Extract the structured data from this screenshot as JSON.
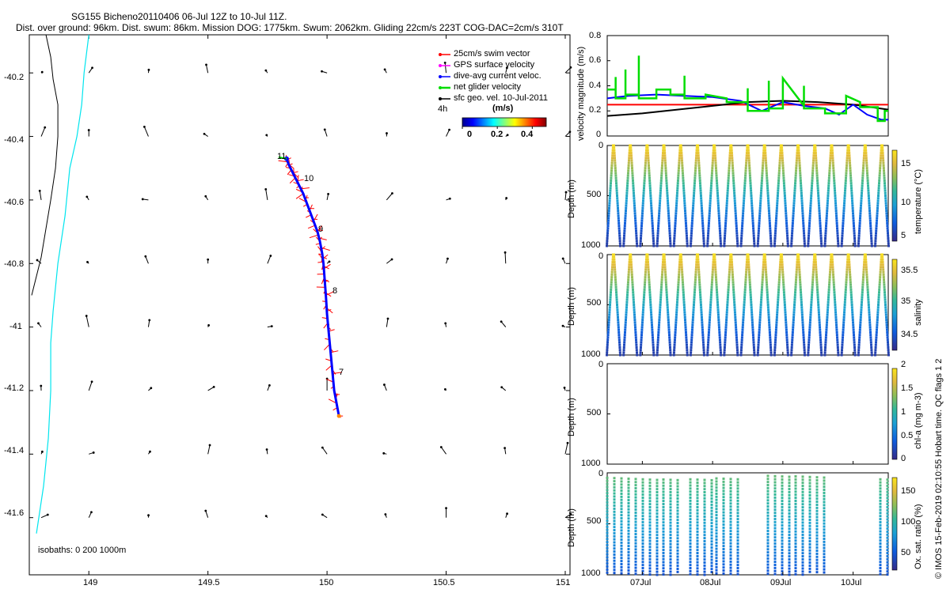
{
  "header": {
    "line1": "SG155 Bicheno20110406 06-Jul 12Z to 10-Jul 11Z.",
    "line2": "Dist. over ground: 96km. Dist. swum: 86km. Mission DOG: 1775km. Swum: 2062km. Gliding 22cm/s 223T COG-DAC=2cm/s 310T"
  },
  "footer_credit": "© IMOS 15-Feb-2019 02:10:55 Hobart time. QC flags 1  2",
  "colors": {
    "swim": "#ff0000",
    "gps": "#ff00ff",
    "dac": "#0000ff",
    "net": "#00dd00",
    "sfc": "#000000",
    "isobath_0": "#000000",
    "isobath_200": "#00e5ee"
  },
  "chart_data": [
    {
      "type": "scatter",
      "id": "track_map",
      "xlim": [
        148.75,
        151.02
      ],
      "ylim": [
        -41.78,
        -40.08
      ],
      "x_ticks": [
        "149",
        "149.5",
        "150",
        "150.5",
        "151"
      ],
      "x_tick_values": [
        149,
        149.5,
        150,
        150.5,
        151
      ],
      "y_ticks": [
        "-40.2",
        "-40.4",
        "-40.6",
        "-40.8",
        "-41",
        "-41.2",
        "-41.4",
        "-41.6"
      ],
      "y_tick_values": [
        -40.2,
        -40.4,
        -40.6,
        -40.8,
        -41.0,
        -41.2,
        -41.4,
        -41.6
      ],
      "legend": [
        "25cm/s swim vector",
        "GPS surface velocity",
        "dive-avg current veloc.",
        "net glider velocity",
        "sfc geo. vel. 10-Jul-2011"
      ],
      "legend_extra": "4h",
      "colorbar_title": "(m/s)",
      "colorbar_ticks": [
        "0",
        "0.2",
        "0.4"
      ],
      "colorbar_range": [
        0,
        0.48
      ],
      "isobath_note": "isobaths: 0   200   1000m",
      "day_labels": [
        {
          "label": "11",
          "lon": 149.82,
          "lat": -40.46
        },
        {
          "label": "10",
          "lon": 149.93,
          "lat": -40.54
        },
        {
          "label": "9",
          "lon": 149.97,
          "lat": -40.74
        },
        {
          "label": "8",
          "lon": 150.01,
          "lat": -40.94
        },
        {
          "label": "7",
          "lon": 150.04,
          "lat": -41.17
        }
      ],
      "track": {
        "lon": [
          150.05,
          150.03,
          150.02,
          150.01,
          150.0,
          149.995,
          149.99,
          149.985,
          149.98,
          149.97,
          149.96,
          149.94,
          149.92,
          149.9,
          149.88,
          149.86,
          149.84,
          149.83
        ],
        "lat": [
          -41.28,
          -41.2,
          -41.12,
          -41.04,
          -40.96,
          -40.9,
          -40.85,
          -40.8,
          -40.77,
          -40.73,
          -40.7,
          -40.66,
          -40.62,
          -40.58,
          -40.55,
          -40.52,
          -40.49,
          -40.47
        ]
      },
      "coastline_0m": {
        "lon": [
          148.82,
          148.84,
          148.85,
          148.87,
          148.87,
          148.86,
          148.84,
          148.8,
          148.76
        ],
        "lat": [
          -40.08,
          -40.15,
          -40.22,
          -40.3,
          -40.4,
          -40.5,
          -40.6,
          -40.78,
          -40.9
        ]
      },
      "isobath_200m": {
        "lon": [
          149.0,
          148.98,
          148.97,
          148.95,
          148.92,
          148.9,
          148.87,
          148.85,
          148.84,
          148.84,
          148.83,
          148.81,
          148.78
        ],
        "lat": [
          -40.08,
          -40.2,
          -40.3,
          -40.4,
          -40.5,
          -40.65,
          -40.8,
          -40.95,
          -41.05,
          -41.2,
          -41.35,
          -41.5,
          -41.65
        ]
      }
    },
    {
      "type": "line",
      "id": "velocity",
      "ylabel": "velocity magnitude (m/s)",
      "ylim": [
        0,
        0.8
      ],
      "y_ticks": [
        "0",
        "0.2",
        "0.4",
        "0.6",
        "0.8"
      ],
      "y_tick_values": [
        0,
        0.2,
        0.4,
        0.6,
        0.8
      ],
      "xlim": [
        6.5,
        10.5
      ],
      "series": [
        {
          "color": "#ff0000",
          "x": [
            6.5,
            10.5
          ],
          "y": [
            0.25,
            0.25
          ]
        },
        {
          "color": "#000000",
          "x": [
            6.5,
            7.0,
            7.5,
            8.0,
            8.5,
            9.0,
            9.5,
            10.0,
            10.5
          ],
          "y": [
            0.16,
            0.18,
            0.21,
            0.24,
            0.27,
            0.28,
            0.27,
            0.25,
            0.21
          ]
        },
        {
          "color": "#0000ff",
          "x": [
            6.5,
            6.8,
            7.2,
            7.6,
            8.0,
            8.4,
            8.7,
            9.0,
            9.3,
            9.6,
            9.8,
            10.0,
            10.2,
            10.4,
            10.5
          ],
          "y": [
            0.3,
            0.32,
            0.33,
            0.32,
            0.31,
            0.28,
            0.2,
            0.27,
            0.24,
            0.22,
            0.17,
            0.25,
            0.17,
            0.13,
            0.13
          ]
        },
        {
          "color": "#00dd00",
          "x": [
            6.5,
            6.62,
            6.62,
            6.62,
            6.76,
            6.76,
            6.76,
            6.95,
            6.95,
            6.95,
            7.2,
            7.2,
            7.4,
            7.4,
            7.6,
            7.6,
            7.6,
            7.9,
            7.9,
            8.2,
            8.2,
            8.5,
            8.5,
            8.5,
            8.8,
            8.8,
            8.8,
            9.0,
            9.0,
            9.3,
            9.3,
            9.3,
            9.6,
            9.6,
            9.9,
            9.9,
            10.1,
            10.1,
            10.35,
            10.35,
            10.45,
            10.45,
            10.5
          ],
          "y": [
            0.37,
            0.37,
            0.47,
            0.3,
            0.3,
            0.53,
            0.33,
            0.33,
            0.64,
            0.3,
            0.3,
            0.37,
            0.37,
            0.33,
            0.33,
            0.48,
            0.3,
            0.3,
            0.33,
            0.3,
            0.27,
            0.27,
            0.38,
            0.2,
            0.2,
            0.44,
            0.22,
            0.22,
            0.46,
            0.24,
            0.4,
            0.22,
            0.22,
            0.18,
            0.18,
            0.32,
            0.27,
            0.23,
            0.23,
            0.12,
            0.12,
            0.2,
            0.2
          ]
        }
      ]
    },
    {
      "type": "scatter",
      "id": "temperature",
      "ylabel": "Depth (m)",
      "y_ticks": [
        "0",
        "500",
        "1000"
      ],
      "y_tick_values": [
        0,
        500,
        1000
      ],
      "colorbar_label": "temperature (°C)",
      "colorbar_ticks": [
        "5",
        "10",
        "15"
      ],
      "colorbar_tick_values": [
        5,
        10,
        15
      ],
      "clim": [
        4,
        18.5
      ],
      "profiles": 17,
      "depth_range": [
        0,
        1000
      ],
      "surface_value": 17.5,
      "deep_value": 4.5
    },
    {
      "type": "scatter",
      "id": "salinity",
      "ylabel": "Depth (m)",
      "y_ticks": [
        "0",
        "500",
        "1000"
      ],
      "y_tick_values": [
        0,
        500,
        1000
      ],
      "colorbar_label": "salinity",
      "colorbar_ticks": [
        "34.5",
        "35",
        "35.5"
      ],
      "colorbar_tick_values": [
        34.5,
        35,
        35.5
      ],
      "clim": [
        34.3,
        35.7
      ],
      "profiles": 17,
      "depth_range": [
        0,
        1000
      ],
      "surface_value": 35.55,
      "deep_value": 34.35
    },
    {
      "type": "scatter",
      "id": "chla",
      "ylabel": "Depth (m)",
      "y_ticks": [
        "0",
        "500",
        "1000"
      ],
      "y_tick_values": [
        0,
        500,
        1000
      ],
      "colorbar_label": "chl-a (mg m-3)",
      "colorbar_ticks": [
        "0",
        "0.5",
        "1",
        "1.5",
        "2"
      ],
      "colorbar_tick_values": [
        0,
        0.5,
        1,
        1.5,
        2
      ],
      "clim": [
        0,
        2
      ],
      "profiles": 0
    },
    {
      "type": "scatter",
      "id": "oxygen",
      "ylabel": "Depth (m)",
      "y_ticks": [
        "0",
        "500",
        "1000"
      ],
      "y_tick_values": [
        0,
        500,
        1000
      ],
      "colorbar_label": "Ox. sat. ratio (%)",
      "colorbar_ticks": [
        "50",
        "100",
        "150"
      ],
      "colorbar_tick_values": [
        50,
        100,
        150
      ],
      "clim": [
        20,
        175
      ],
      "x_ticks": [
        "07Jul",
        "08Jul",
        "09Jul",
        "10Jul"
      ],
      "x_tick_values": [
        7,
        8,
        9,
        10
      ],
      "xlim": [
        6.5,
        10.5
      ],
      "surface_value": 115,
      "deep_value": 40
    }
  ]
}
